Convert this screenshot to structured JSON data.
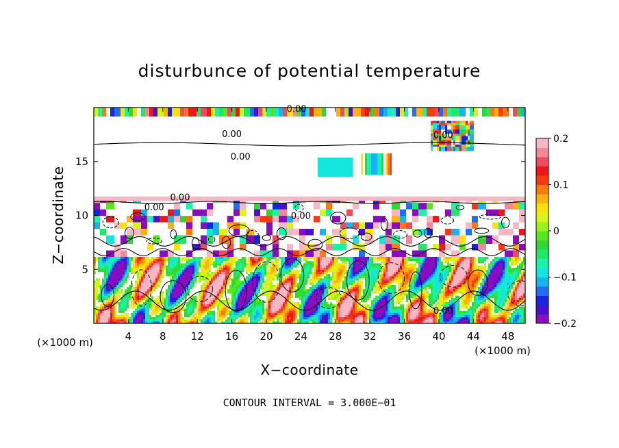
{
  "chart_data": {
    "type": "heatmap",
    "title": "disturbunce of potential temperature",
    "xlabel": "X−coordinate",
    "ylabel": "Z−coordinate",
    "x_unit": "(×1000 m)",
    "z_unit": "(×1000 m)",
    "xlim": [
      0,
      50
    ],
    "ylim": [
      0,
      20
    ],
    "x_ticks": [
      "4",
      "8",
      "12",
      "16",
      "20",
      "24",
      "28",
      "32",
      "36",
      "40",
      "44",
      "48"
    ],
    "y_ticks": [
      "5",
      "10",
      "15"
    ],
    "colorbar": {
      "range": [
        -0.2,
        0.2
      ],
      "tick_labels": [
        "0.2",
        "0.1",
        "0",
        "−0.1",
        "−0.2"
      ],
      "colors": [
        "#8a0dbf",
        "#4a0fcf",
        "#1525e0",
        "#1e6ff2",
        "#18b4f2",
        "#12e6df",
        "#18f5a4",
        "#1fe86a",
        "#2fd835",
        "#55e81c",
        "#9af218",
        "#d8f514",
        "#ffe10a",
        "#ffb20a",
        "#ff7a0a",
        "#ff3a10",
        "#ee1616",
        "#f04a5e",
        "#f58898",
        "#f8b8c3"
      ]
    },
    "contour_labels": [
      "0.00",
      "0.00",
      "0.00",
      "0.00",
      "0.00",
      "0.00",
      "0.00",
      "0.00"
    ],
    "footer": "CONTOUR INTERVAL = 3.000E−01"
  }
}
